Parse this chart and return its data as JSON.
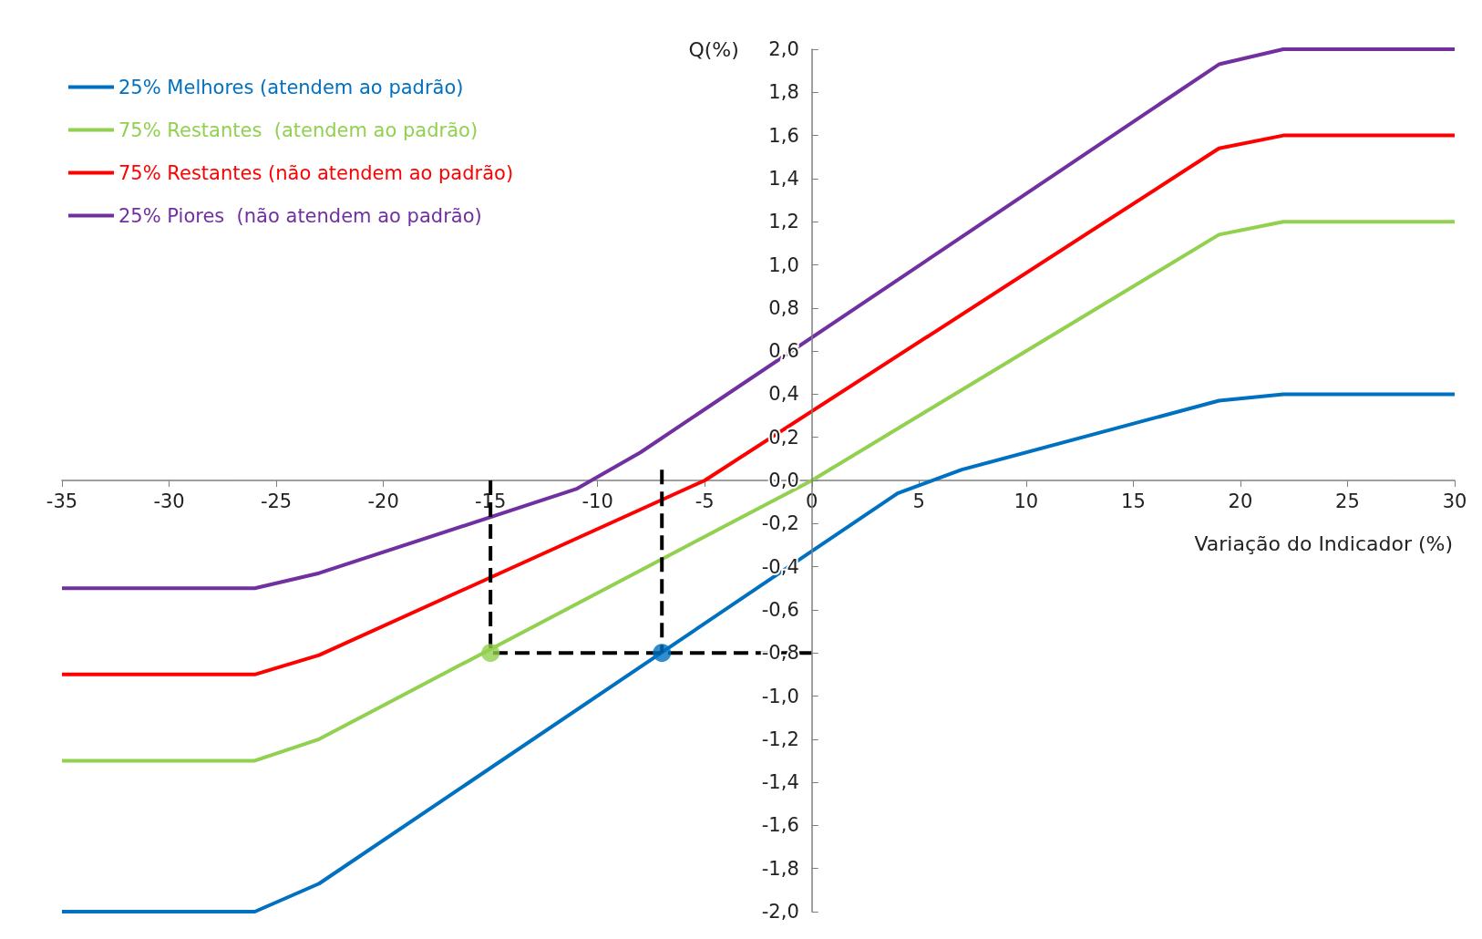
{
  "chart_data": {
    "type": "line",
    "xlabel": "Variação do Indicador (%)",
    "ylabel": "Q(%)",
    "xlim": [
      -35,
      30
    ],
    "xticks": [
      -35,
      -30,
      -25,
      -20,
      -15,
      -10,
      -5,
      0,
      5,
      10,
      15,
      20,
      25,
      30
    ],
    "ylim": [
      -2,
      2
    ],
    "yticks": [
      {
        "value": -2,
        "label": "-2,0"
      },
      {
        "value": -1.8,
        "label": "-1,8"
      },
      {
        "value": -1.6,
        "label": "-1,6"
      },
      {
        "value": -1.4,
        "label": "-1,4"
      },
      {
        "value": -1.2,
        "label": "-1,2"
      },
      {
        "value": -1,
        "label": "-1,0"
      },
      {
        "value": -0.8,
        "label": "-0,8"
      },
      {
        "value": -0.6,
        "label": "-0,6"
      },
      {
        "value": -0.4,
        "label": "-0,4"
      },
      {
        "value": -0.2,
        "label": "-0,2"
      },
      {
        "value": 0,
        "label": "0,0"
      },
      {
        "value": 0.2,
        "label": "0,2"
      },
      {
        "value": 0.4,
        "label": "0,4"
      },
      {
        "value": 0.6,
        "label": "0,6"
      },
      {
        "value": 0.8,
        "label": "0,8"
      },
      {
        "value": 1,
        "label": "1,0"
      },
      {
        "value": 1.2,
        "label": "1,2"
      },
      {
        "value": 1.4,
        "label": "1,4"
      },
      {
        "value": 1.6,
        "label": "1,6"
      },
      {
        "value": 1.8,
        "label": "1,8"
      },
      {
        "value": 2,
        "label": "2,0"
      }
    ],
    "grid": false,
    "legend": "top left",
    "marker": "none",
    "line_style": "solid",
    "series": [
      {
        "name": "25% Melhores (atendem ao padrão)",
        "color": "#0070c0",
        "x": [
          -35,
          -26,
          -23,
          4,
          7,
          19,
          22,
          30
        ],
        "values": [
          -2,
          -2,
          -1.87,
          -0.06,
          0.05,
          0.37,
          0.4,
          0.4
        ]
      },
      {
        "name": "75% Restantes  (atendem ao padrão)",
        "color": "#92d050",
        "x": [
          -35,
          -26,
          -23,
          0,
          1,
          19,
          22,
          30
        ],
        "values": [
          -1.3,
          -1.3,
          -1.2,
          0,
          0.06,
          1.14,
          1.2,
          1.2
        ]
      },
      {
        "name": "75% Restantes (não atendem ao padrão)",
        "color": "#ff0000",
        "x": [
          -35,
          -26,
          -23,
          -5,
          19,
          22,
          30
        ],
        "values": [
          -0.9,
          -0.9,
          -0.81,
          0,
          1.54,
          1.6,
          1.6
        ]
      },
      {
        "name": "25% Piores  (não atendem ao padrão)",
        "color": "#7030a0",
        "x": [
          -35,
          -26,
          -23,
          -11,
          -8,
          19,
          22,
          30
        ],
        "values": [
          -0.5,
          -0.5,
          -0.43,
          -0.04,
          0.13,
          1.93,
          2,
          2
        ]
      },
      {
        "color": "#000000",
        "line_style": "dashed",
        "x": [
          -15,
          -15,
          0
        ],
        "values": [
          0,
          -0.8,
          -0.8
        ]
      },
      {
        "color": "#000000",
        "line_style": "dashed",
        "x": [
          -7,
          -7
        ],
        "values": [
          0.05,
          -0.8
        ]
      },
      {
        "type": "scatter",
        "marker": "circle",
        "color": "#92d050",
        "x": [
          -15
        ],
        "values": [
          -0.8
        ]
      },
      {
        "type": "scatter",
        "marker": "circle",
        "color": "#0070c0",
        "x": [
          -7
        ],
        "values": [
          -0.8
        ]
      }
    ]
  }
}
